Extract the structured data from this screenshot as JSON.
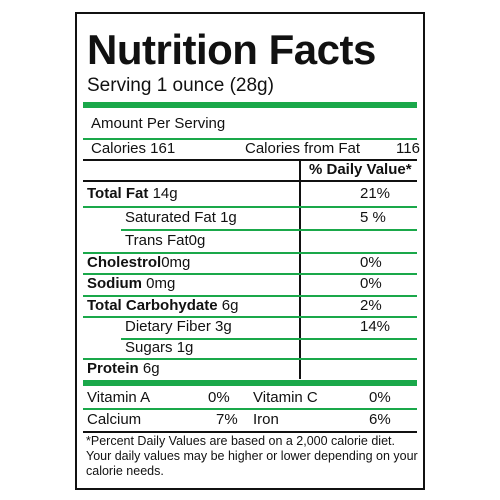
{
  "title": "Nutrition Facts",
  "serving": "Serving 1 ounce (28g)",
  "amount_per_serving": "Amount Per Serving",
  "calories_label": "Calories 161",
  "calories_fat_label": "Calories from Fat",
  "calories_fat_value": "116",
  "daily_value_header": "% Daily Value*",
  "nutrients": [
    {
      "name": "Total Fat",
      "amount": "14g",
      "dv": "21%"
    },
    {
      "name": "Saturated Fat",
      "amount": "1g",
      "dv": "5 %"
    },
    {
      "name": "Trans Fat",
      "amount": "0g",
      "dv": ""
    },
    {
      "name": "Cholestrol",
      "amount": "0mg",
      "dv": "0%"
    },
    {
      "name": "Sodium",
      "amount": "0mg",
      "dv": "0%"
    },
    {
      "name": "Total Carbohydate",
      "amount": "6g",
      "dv": "2%"
    },
    {
      "name": "Dietary Fiber",
      "amount": "3g",
      "dv": "14%"
    },
    {
      "name": "Sugars",
      "amount": "1g",
      "dv": ""
    },
    {
      "name": "Protein",
      "amount": "6g",
      "dv": ""
    }
  ],
  "vitamins": [
    {
      "name": "Vitamin A",
      "value": "0%"
    },
    {
      "name": "Vitamin C",
      "value": "0%"
    },
    {
      "name": "Calcium",
      "value": "7%"
    },
    {
      "name": "Iron",
      "value": "6%"
    }
  ],
  "footnote": "*Percent Daily Values are based on a 2,000 calorie diet. Your daily values may be higher or lower depending on your calorie needs.",
  "colors": {
    "accent": "#1aa84a",
    "text": "#111111"
  }
}
